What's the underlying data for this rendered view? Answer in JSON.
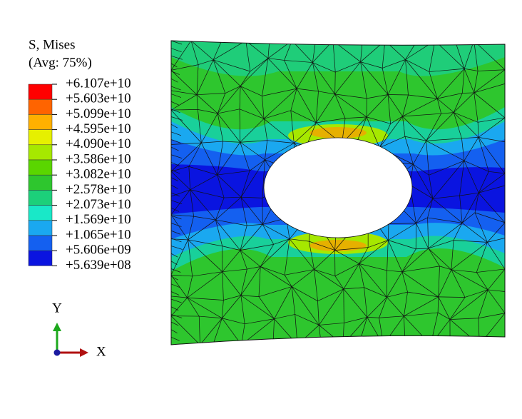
{
  "legend": {
    "title": "S, Mises",
    "subtitle": "(Avg: 75%)",
    "labels": [
      "+6.107e+10",
      "+5.603e+10",
      "+5.099e+10",
      "+4.595e+10",
      "+4.090e+10",
      "+3.586e+10",
      "+3.082e+10",
      "+2.578e+10",
      "+2.073e+10",
      "+1.569e+10",
      "+1.065e+10",
      "+5.606e+09",
      "+5.639e+08"
    ],
    "colors": [
      "#ff0000",
      "#ff6400",
      "#ffb000",
      "#e6f000",
      "#a6e800",
      "#5ad600",
      "#2ec62e",
      "#1cd07a",
      "#19e8c8",
      "#1aa8f0",
      "#1460f0",
      "#0a14e0"
    ]
  },
  "triad": {
    "y": "Y",
    "x": "X"
  }
}
